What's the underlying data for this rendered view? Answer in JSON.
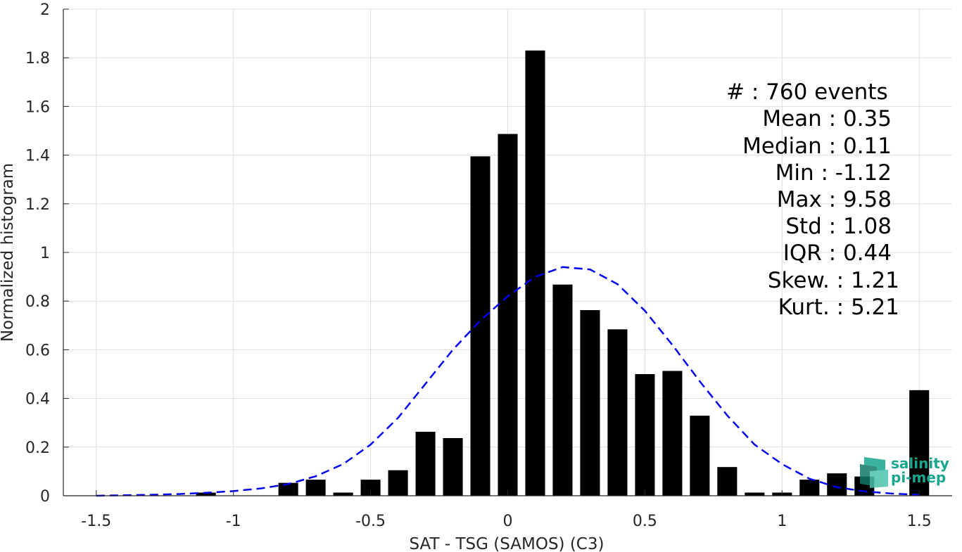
{
  "chart_data": {
    "type": "bar",
    "xlabel": "SAT - TSG (SAMOS) (C3)",
    "ylabel": "Normalized histogram",
    "xlim": [
      -1.62,
      1.62
    ],
    "ylim": [
      0,
      2
    ],
    "xticks": [
      -1.5,
      -1,
      -0.5,
      0,
      0.5,
      1,
      1.5
    ],
    "xtick_labels": [
      "-1.5",
      "-1",
      "-0.5",
      "0",
      "0.5",
      "1",
      "1.5"
    ],
    "yticks": [
      0,
      0.2,
      0.4,
      0.6,
      0.8,
      1,
      1.2,
      1.4,
      1.6,
      1.8,
      2
    ],
    "ytick_labels": [
      "0",
      "0.2",
      "0.4",
      "0.6",
      "0.8",
      "1",
      "1.2",
      "1.4",
      "1.6",
      "1.8",
      "2"
    ],
    "grid": true,
    "bar_width": 0.072,
    "bins": [
      {
        "x": -1.1,
        "y": 0.013
      },
      {
        "x": -0.8,
        "y": 0.053
      },
      {
        "x": -0.7,
        "y": 0.066
      },
      {
        "x": -0.6,
        "y": 0.013
      },
      {
        "x": -0.5,
        "y": 0.066
      },
      {
        "x": -0.4,
        "y": 0.105
      },
      {
        "x": -0.3,
        "y": 0.263
      },
      {
        "x": -0.2,
        "y": 0.237
      },
      {
        "x": -0.1,
        "y": 1.395
      },
      {
        "x": 0.0,
        "y": 1.487
      },
      {
        "x": 0.1,
        "y": 1.83
      },
      {
        "x": 0.2,
        "y": 0.868
      },
      {
        "x": 0.3,
        "y": 0.763
      },
      {
        "x": 0.4,
        "y": 0.684
      },
      {
        "x": 0.5,
        "y": 0.5
      },
      {
        "x": 0.6,
        "y": 0.513
      },
      {
        "x": 0.7,
        "y": 0.329
      },
      {
        "x": 0.8,
        "y": 0.118
      },
      {
        "x": 0.9,
        "y": 0.013
      },
      {
        "x": 1.0,
        "y": 0.013
      },
      {
        "x": 1.1,
        "y": 0.066
      },
      {
        "x": 1.2,
        "y": 0.092
      },
      {
        "x": 1.3,
        "y": 0.079
      },
      {
        "x": 1.5,
        "y": 0.434
      }
    ],
    "bar_color": "#000000",
    "fit_curve": {
      "style": "dashed",
      "color": "#0000ee",
      "x": [
        -1.5,
        -1.4,
        -1.3,
        -1.2,
        -1.1,
        -1.0,
        -0.9,
        -0.8,
        -0.7,
        -0.6,
        -0.5,
        -0.4,
        -0.3,
        -0.2,
        -0.1,
        0.0,
        0.1,
        0.2,
        0.3,
        0.4,
        0.5,
        0.6,
        0.7,
        0.8,
        0.9,
        1.0,
        1.1,
        1.2,
        1.3,
        1.4,
        1.5
      ],
      "y": [
        0.0,
        0.002,
        0.004,
        0.007,
        0.012,
        0.019,
        0.03,
        0.048,
        0.08,
        0.13,
        0.21,
        0.32,
        0.46,
        0.6,
        0.72,
        0.82,
        0.9,
        0.94,
        0.93,
        0.87,
        0.76,
        0.62,
        0.47,
        0.33,
        0.21,
        0.13,
        0.07,
        0.035,
        0.018,
        0.009,
        0.004
      ]
    },
    "stats_lines": [
      "#  : 760 events",
      "Mean : 0.35",
      "Median : 0.11",
      "Min : -1.12",
      "Max : 9.58",
      "Std : 1.08",
      "IQR : 0.44",
      "Skew. : 1.21",
      "Kurt. : 5.21"
    ]
  },
  "logo": {
    "line1": "salinity",
    "line2": "pi-mep",
    "color": "#1aa58e"
  }
}
